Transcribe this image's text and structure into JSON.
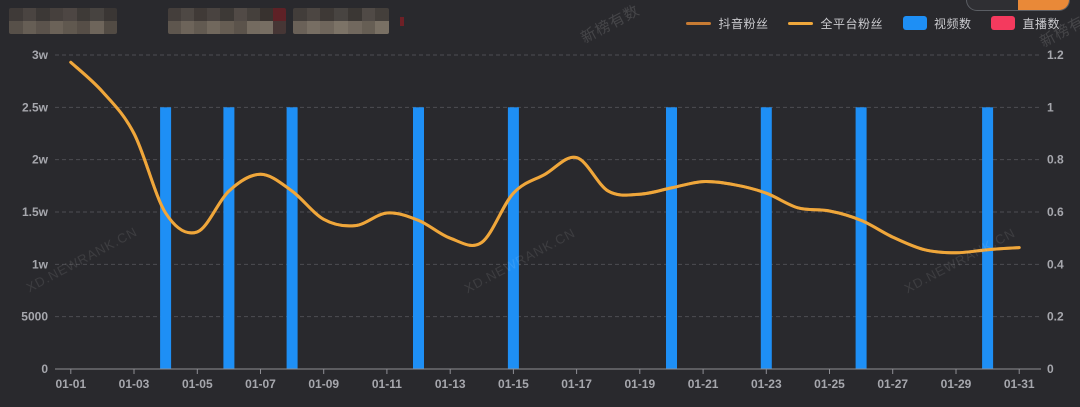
{
  "colors": {
    "background": "#29292D",
    "grid": "#4D4D52",
    "axis_line": "#8E8E94",
    "axis_label": "#A6A7AD",
    "legend_text": "#C9C9CD",
    "toggle_accent": "#E98938"
  },
  "watermarks": {
    "xd": "XD.NEWRANK.CN",
    "brand": "新榜有数"
  },
  "legend_icons": [
    "line",
    "line",
    "rect",
    "rect"
  ],
  "chart_data": {
    "type": "combo",
    "title": "",
    "categories": [
      "01-01",
      "01-02",
      "01-03",
      "01-04",
      "01-05",
      "01-06",
      "01-07",
      "01-08",
      "01-09",
      "01-10",
      "01-11",
      "01-12",
      "01-13",
      "01-14",
      "01-15",
      "01-16",
      "01-17",
      "01-18",
      "01-19",
      "01-20",
      "01-21",
      "01-22",
      "01-23",
      "01-24",
      "01-25",
      "01-26",
      "01-27",
      "01-28",
      "01-29",
      "01-30",
      "01-31"
    ],
    "x_label_interval": 2,
    "left_axis": {
      "labels": [
        "0",
        "5000",
        "1w",
        "1.5w",
        "2w",
        "2.5w",
        "3w"
      ],
      "min": 0,
      "max": 30000
    },
    "right_axis": {
      "labels": [
        "0",
        "0.2",
        "0.4",
        "0.6",
        "0.8",
        "1",
        "1.2"
      ],
      "min": 0,
      "max": 1.2
    },
    "grid": "horizontal-dashed",
    "legend_position": "top-right",
    "series": [
      {
        "name": "抖音粉丝",
        "type": "line",
        "y_axis": "left",
        "color": "#C77B33",
        "smooth": true,
        "values": [
          29300,
          26500,
          22500,
          14900,
          13100,
          17000,
          18600,
          17000,
          14300,
          13700,
          14900,
          14200,
          12500,
          12100,
          16800,
          18600,
          20200,
          17000,
          16700,
          17300,
          17900,
          17600,
          16800,
          15400,
          15100,
          14200,
          12600,
          11400,
          11100,
          11400,
          11600
        ]
      },
      {
        "name": "全平台粉丝",
        "type": "line",
        "y_axis": "left",
        "color": "#EFA73B",
        "smooth": true,
        "values": [
          29300,
          26500,
          22500,
          14900,
          13100,
          17000,
          18600,
          17000,
          14300,
          13700,
          14900,
          14200,
          12500,
          12100,
          16800,
          18600,
          20200,
          17000,
          16700,
          17300,
          17900,
          17600,
          16800,
          15400,
          15100,
          14200,
          12600,
          11400,
          11100,
          11400,
          11600
        ]
      },
      {
        "name": "视频数",
        "type": "bar",
        "y_axis": "right",
        "color": "#1E8FF5",
        "values": [
          0,
          0,
          0,
          1,
          0,
          1,
          0,
          1,
          0,
          0,
          0,
          1,
          0,
          0,
          1,
          0,
          0,
          0,
          0,
          1,
          0,
          0,
          1,
          0,
          0,
          1,
          0,
          0,
          0,
          1,
          0
        ]
      },
      {
        "name": "直播数",
        "type": "bar",
        "y_axis": "right",
        "color": "#F43A5E",
        "values": [
          0,
          0,
          0,
          0,
          0,
          0,
          0,
          0,
          0,
          0,
          0,
          0,
          0,
          0,
          0,
          0,
          0,
          0,
          0,
          0,
          0,
          0,
          0,
          0,
          0,
          0,
          0,
          0,
          0,
          0,
          0
        ]
      }
    ]
  },
  "redacted": {
    "block1": [
      [
        "#3F3A38",
        "#4A4441",
        "#3C3836",
        "#46403D",
        "#4D4643",
        "#3E3A37",
        "#474340",
        "#3A3634"
      ],
      [
        "#575049",
        "#665E55",
        "#5B534C",
        "#6B6258",
        "#60584F",
        "#564E47",
        "#6E655B",
        "#524B44"
      ]
    ],
    "block2": [
      [
        "#443E3B",
        "#4E4844",
        "#403A37",
        "#494340",
        "#3D3936",
        "#514A46",
        "#45403C",
        "#38322F",
        "#5E2126"
      ],
      [
        "#5E564E",
        "#6D645A",
        "#625A51",
        "#71685D",
        "#665D53",
        "#5B534B",
        "#746B60",
        "#776E63",
        "#463635"
      ]
    ],
    "block3": [
      [
        "#423D3A",
        "#4C4642",
        "#3E3936",
        "#484441",
        "#3B3734",
        "#504A46",
        "#443F3B"
      ],
      [
        "#6A6158",
        "#776E63",
        "#6F665C",
        "#7C7367",
        "#71685E",
        "#665E54",
        "#797064"
      ]
    ]
  }
}
